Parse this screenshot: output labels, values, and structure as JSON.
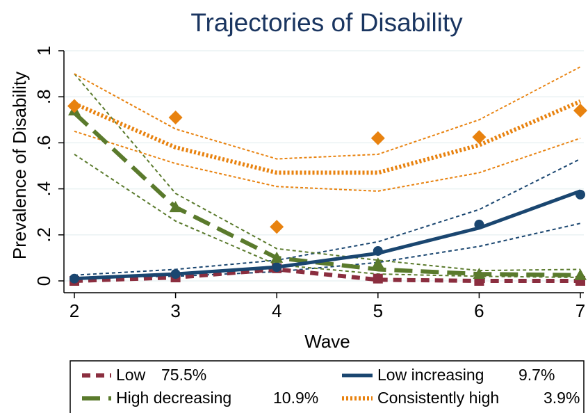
{
  "chart_data": {
    "type": "line",
    "title": "Trajectories of Disability",
    "xlabel": "Wave",
    "ylabel": "Prevalence of Disability",
    "x": [
      2,
      3,
      4,
      5,
      6,
      7
    ],
    "xlim": [
      2,
      7
    ],
    "ylim": [
      0,
      1
    ],
    "yticks": [
      0,
      0.2,
      0.4,
      0.6,
      0.8,
      1
    ],
    "ytick_labels": [
      "0",
      ".2",
      ".4",
      ".6",
      ".8",
      "1"
    ],
    "xtick_labels": [
      "2",
      "3",
      "4",
      "5",
      "6",
      "7"
    ],
    "grid": "horizontal",
    "legend_position": "bottom",
    "series": [
      {
        "key": "low",
        "name": "Low",
        "share": "75.5%",
        "color": "#8b2e3f",
        "line_style": "short-dash",
        "marker": "square",
        "fitted": [
          0.0,
          0.015,
          0.05,
          0.005,
          0.0,
          0.0
        ],
        "observed": [
          0.0,
          0.015,
          0.055,
          0.01,
          0.0,
          0.0
        ],
        "ci_lower": null,
        "ci_upper": null
      },
      {
        "key": "low-increasing",
        "name": "Low increasing",
        "share": "9.7%",
        "color": "#1a4670",
        "line_style": "solid",
        "marker": "circle",
        "fitted": [
          0.01,
          0.03,
          0.06,
          0.12,
          0.23,
          0.39
        ],
        "observed": [
          0.01,
          0.03,
          0.06,
          0.13,
          0.245,
          0.375
        ],
        "ci_lower": [
          0.015,
          0.02,
          0.04,
          0.08,
          0.15,
          0.25
        ],
        "ci_upper": [
          0.025,
          0.05,
          0.09,
          0.17,
          0.31,
          0.53
        ]
      },
      {
        "key": "high-decreasing",
        "name": "High decreasing",
        "share": "10.9%",
        "color": "#5a7a2c",
        "line_style": "long-dash",
        "marker": "triangle",
        "fitted": [
          0.73,
          0.32,
          0.1,
          0.05,
          0.03,
          0.025
        ],
        "observed": [
          0.74,
          0.32,
          0.1,
          0.075,
          0.03,
          0.025
        ],
        "ci_lower": [
          0.55,
          0.26,
          0.07,
          0.03,
          0.02,
          0.015
        ],
        "ci_upper": [
          0.9,
          0.38,
          0.14,
          0.09,
          0.045,
          0.05
        ]
      },
      {
        "key": "consistently-high",
        "name": "Consistently high",
        "share": "3.9%",
        "color": "#e8820f",
        "line_style": "dotted",
        "marker": "diamond",
        "fitted": [
          0.77,
          0.58,
          0.47,
          0.47,
          0.59,
          0.78
        ],
        "observed": [
          0.76,
          0.71,
          0.235,
          0.62,
          0.625,
          0.74
        ],
        "ci_lower": [
          0.65,
          0.51,
          0.41,
          0.39,
          0.47,
          0.62
        ],
        "ci_upper": [
          0.9,
          0.66,
          0.53,
          0.55,
          0.7,
          0.93
        ]
      }
    ]
  }
}
